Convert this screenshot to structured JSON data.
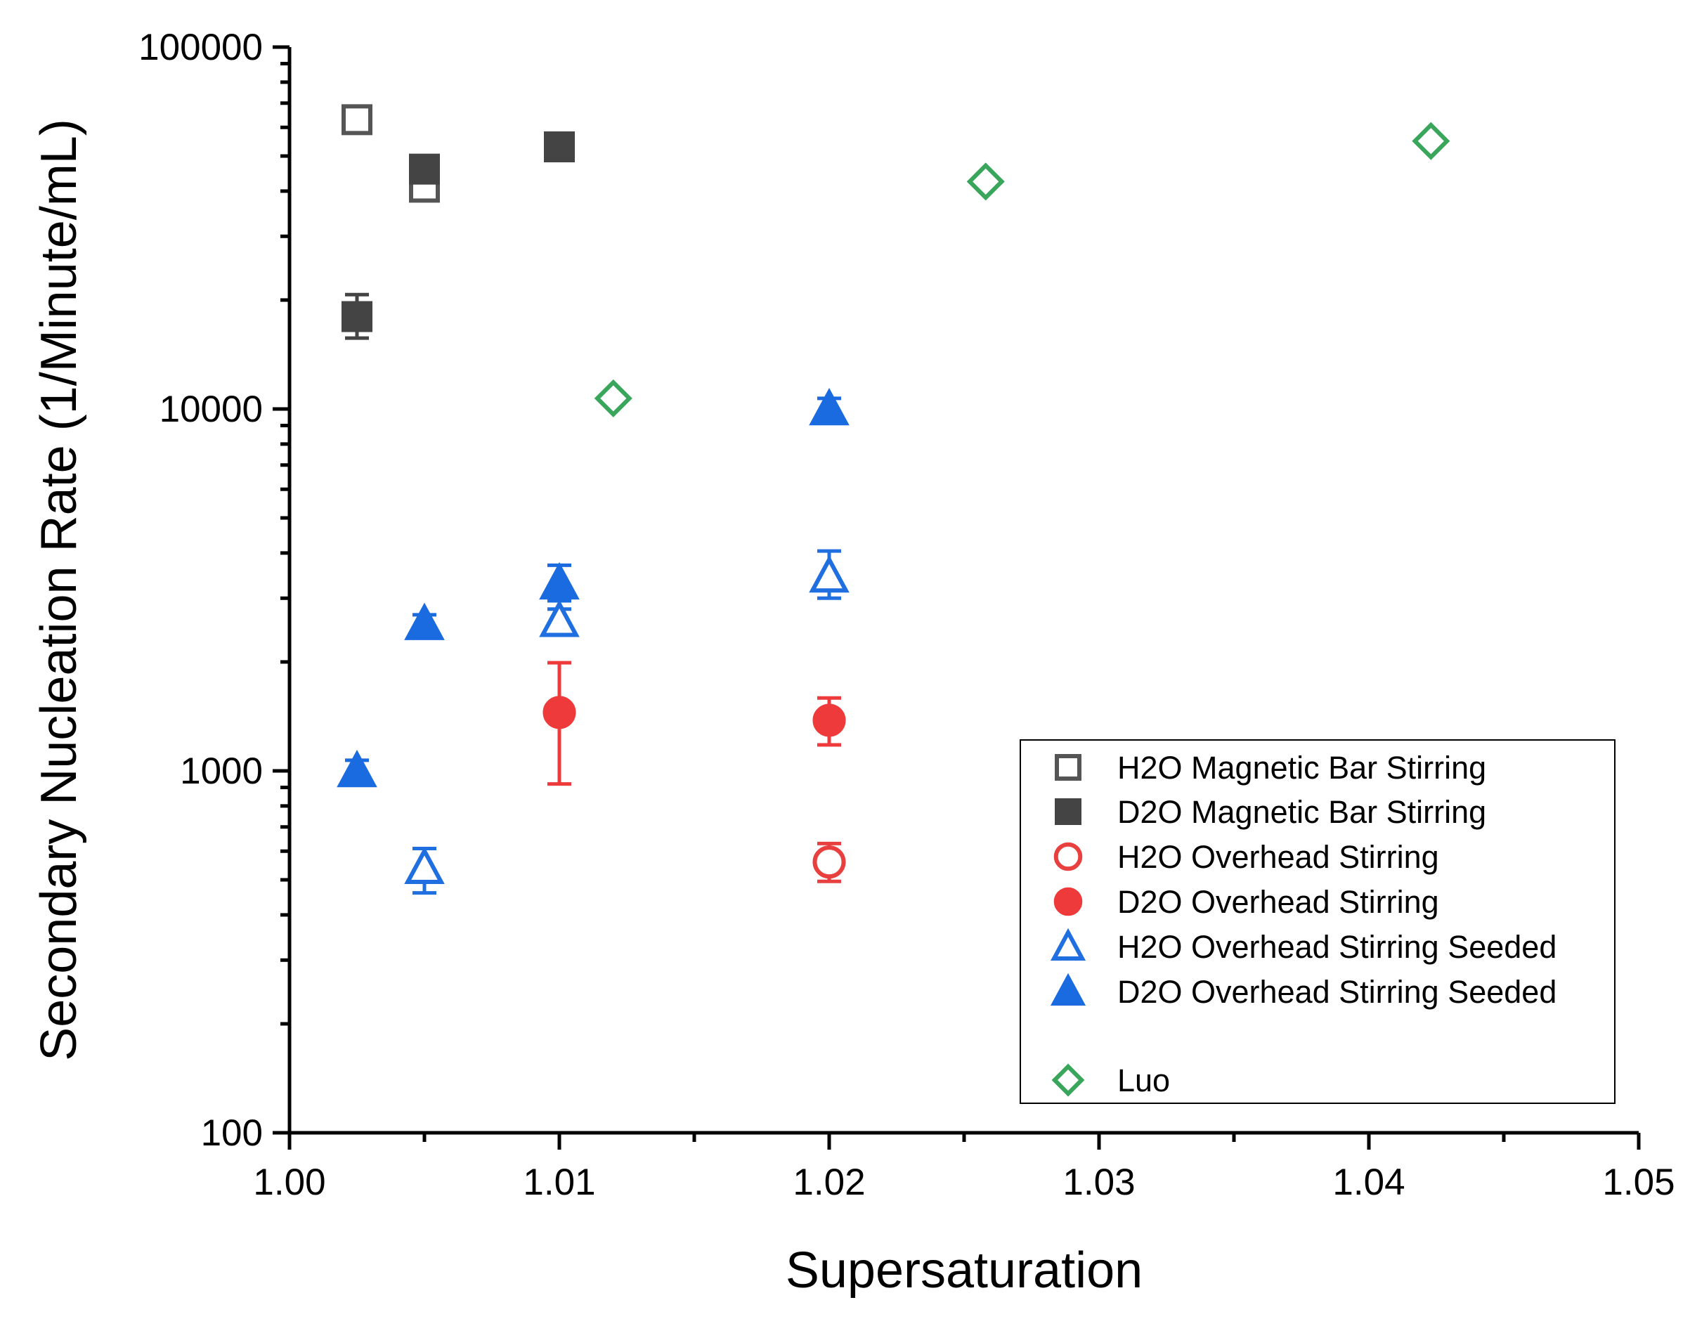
{
  "chart_data": {
    "type": "scatter",
    "title": "",
    "xlabel": "Supersaturation",
    "ylabel": "Secondary Nucleation Rate (1/Minute/mL)",
    "xlim": [
      1.0,
      1.05
    ],
    "ylim": [
      100,
      100000
    ],
    "yscale": "log",
    "xticks": [
      "1.00",
      "1.01",
      "1.02",
      "1.03",
      "1.04",
      "1.05"
    ],
    "yticks": [
      "100",
      "1000",
      "10000",
      "100000"
    ],
    "legend_position": "bottom-right",
    "series": [
      {
        "name": "H2O Magnetic Bar Stirring",
        "marker": "square",
        "filled": false,
        "color": "#555555",
        "points": [
          {
            "x": 1.0025,
            "y": 63000,
            "err": [
              63000,
              63000
            ]
          },
          {
            "x": 1.005,
            "y": 41000,
            "err": [
              41000,
              41000
            ]
          }
        ]
      },
      {
        "name": "D2O Magnetic Bar Stirring",
        "marker": "square",
        "filled": true,
        "color": "#444444",
        "points": [
          {
            "x": 1.0025,
            "y": 18000,
            "err": [
              15700,
              20700
            ]
          },
          {
            "x": 1.005,
            "y": 46000,
            "err": [
              43000,
              49000
            ]
          },
          {
            "x": 1.01,
            "y": 53000,
            "err": [
              50500,
              55500
            ]
          }
        ]
      },
      {
        "name": "H2O Overhead Stirring",
        "marker": "circle",
        "filled": false,
        "color": "#e8403f",
        "points": [
          {
            "x": 1.02,
            "y": 560,
            "err": [
              495,
              630
            ]
          }
        ]
      },
      {
        "name": "D2O Overhead Stirring",
        "marker": "circle",
        "filled": true,
        "color": "#ee3a3a",
        "points": [
          {
            "x": 1.01,
            "y": 1450,
            "err": [
              920,
              1990
            ]
          },
          {
            "x": 1.02,
            "y": 1380,
            "err": [
              1180,
              1590
            ]
          }
        ]
      },
      {
        "name": "H2O Overhead Stirring Seeded",
        "marker": "triangle",
        "filled": false,
        "color": "#1f6fe0",
        "points": [
          {
            "x": 1.005,
            "y": 540,
            "err": [
              460,
              610
            ]
          },
          {
            "x": 1.01,
            "y": 2600,
            "err": [
              2450,
              2800
            ]
          },
          {
            "x": 1.02,
            "y": 3450,
            "err": [
              3000,
              4050
            ]
          }
        ]
      },
      {
        "name": "D2O Overhead Stirring Seeded",
        "marker": "triangle",
        "filled": true,
        "color": "#1a6ae0",
        "points": [
          {
            "x": 1.0025,
            "y": 1000,
            "err": [
              930,
              1070
            ]
          },
          {
            "x": 1.005,
            "y": 2550,
            "err": [
              2400,
              2700
            ]
          },
          {
            "x": 1.01,
            "y": 3300,
            "err": [
              2950,
              3700
            ]
          },
          {
            "x": 1.02,
            "y": 10000,
            "err": [
              9300,
              10700
            ]
          }
        ]
      },
      {
        "name": "Luo",
        "marker": "diamond",
        "filled": false,
        "color": "#3aa65c",
        "points": [
          {
            "x": 1.012,
            "y": 10700
          },
          {
            "x": 1.0258,
            "y": 42500
          },
          {
            "x": 1.0423,
            "y": 55000
          }
        ]
      }
    ]
  }
}
